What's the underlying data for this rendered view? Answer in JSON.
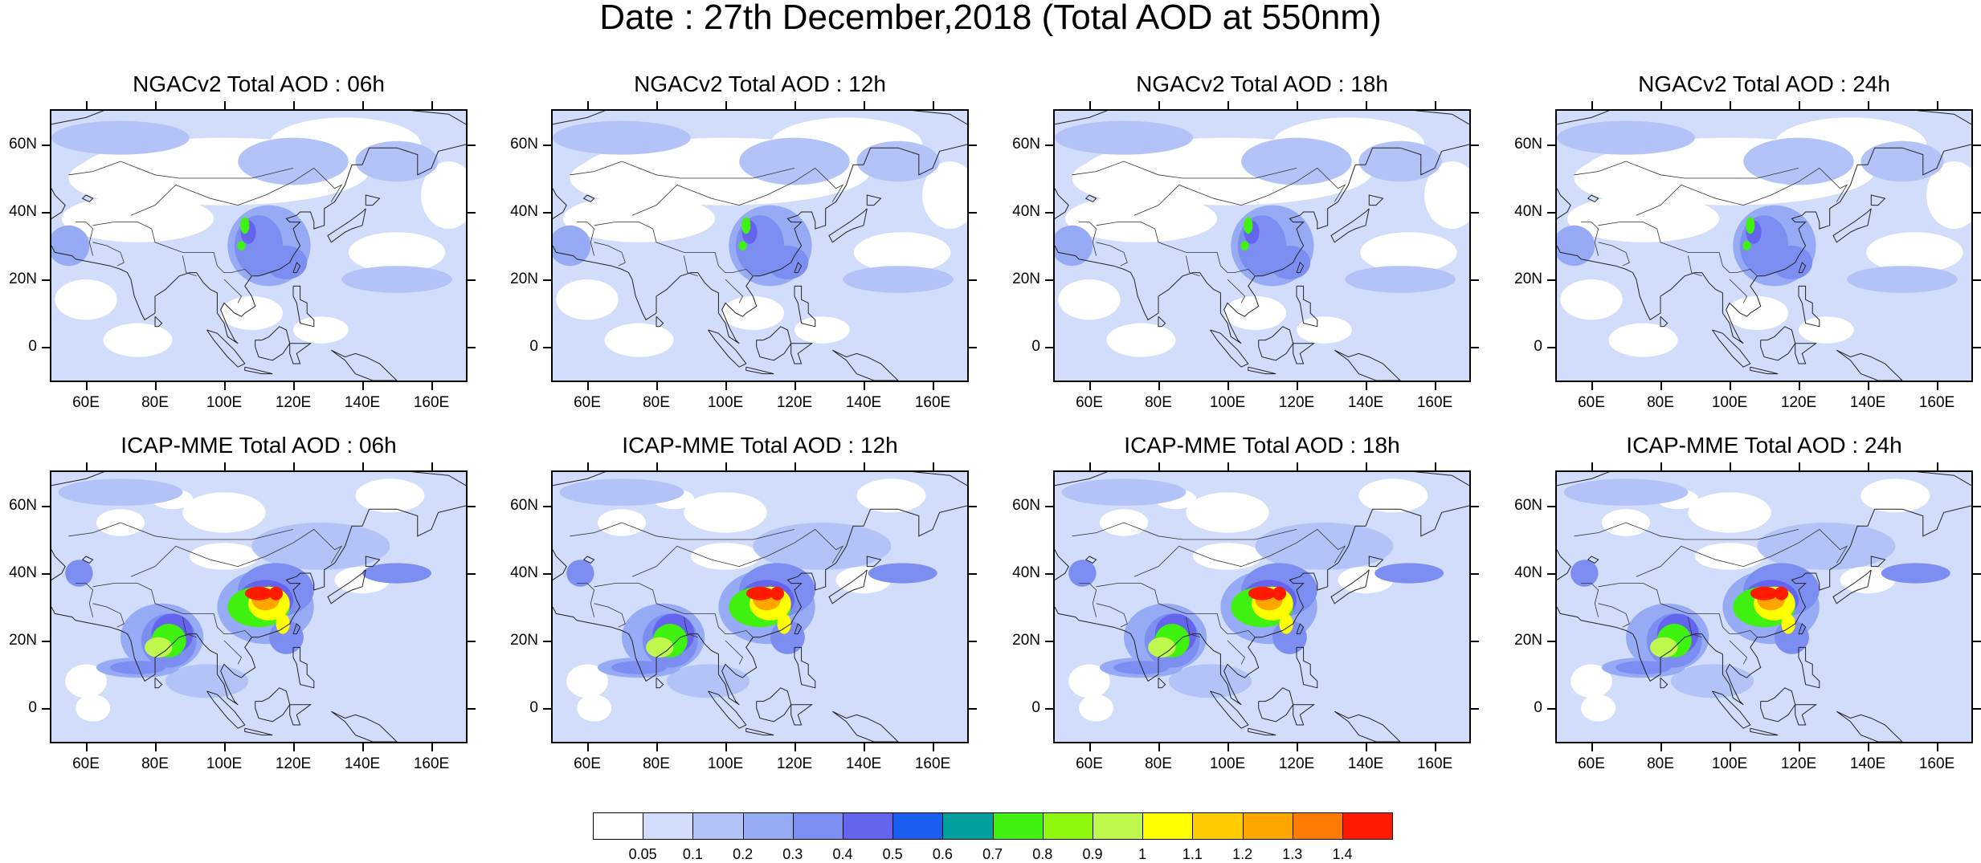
{
  "title": "Date : 27th December,2018 (Total AOD at 550nm)",
  "panels": [
    {
      "title": "NGACv2 Total AOD : 06h"
    },
    {
      "title": "NGACv2 Total AOD : 12h"
    },
    {
      "title": "NGACv2 Total AOD : 18h"
    },
    {
      "title": "NGACv2 Total AOD : 24h"
    },
    {
      "title": "ICAP-MME Total AOD : 06h"
    },
    {
      "title": "ICAP-MME Total AOD : 12h"
    },
    {
      "title": "ICAP-MME Total AOD : 18h"
    },
    {
      "title": "ICAP-MME Total AOD : 24h"
    }
  ],
  "lat_labels": [
    "60N",
    "40N",
    "20N",
    "0"
  ],
  "lon_labels": [
    "60E",
    "80E",
    "100E",
    "120E",
    "140E",
    "160E"
  ],
  "colorbar": {
    "colors": [
      "#ffffff",
      "#d2dcfb",
      "#b4c3f7",
      "#96aaf5",
      "#7d8ef2",
      "#6464ef",
      "#1a5ff0",
      "#029f9f",
      "#3ff20f",
      "#8ff70e",
      "#bff74c",
      "#ffff00",
      "#ffcc00",
      "#ffa500",
      "#ff7a00",
      "#ff1a00"
    ],
    "labels": [
      "0.05",
      "0.1",
      "0.2",
      "0.3",
      "0.4",
      "0.5",
      "0.6",
      "0.7",
      "0.8",
      "0.9",
      "1",
      "1.1",
      "1.2",
      "1.3",
      "1.4"
    ]
  },
  "map_colors": {
    "low": "#ffffff",
    "light": "#d2dcfb",
    "medium_light": "#b4c3f7",
    "medium": "#96aaf5",
    "moderate": "#7d8ef2",
    "high": "#6464ef",
    "green": "#3ff20f",
    "lime": "#bff74c",
    "yellow": "#ffff00",
    "orange": "#ffa500",
    "red": "#ff1a00"
  }
}
